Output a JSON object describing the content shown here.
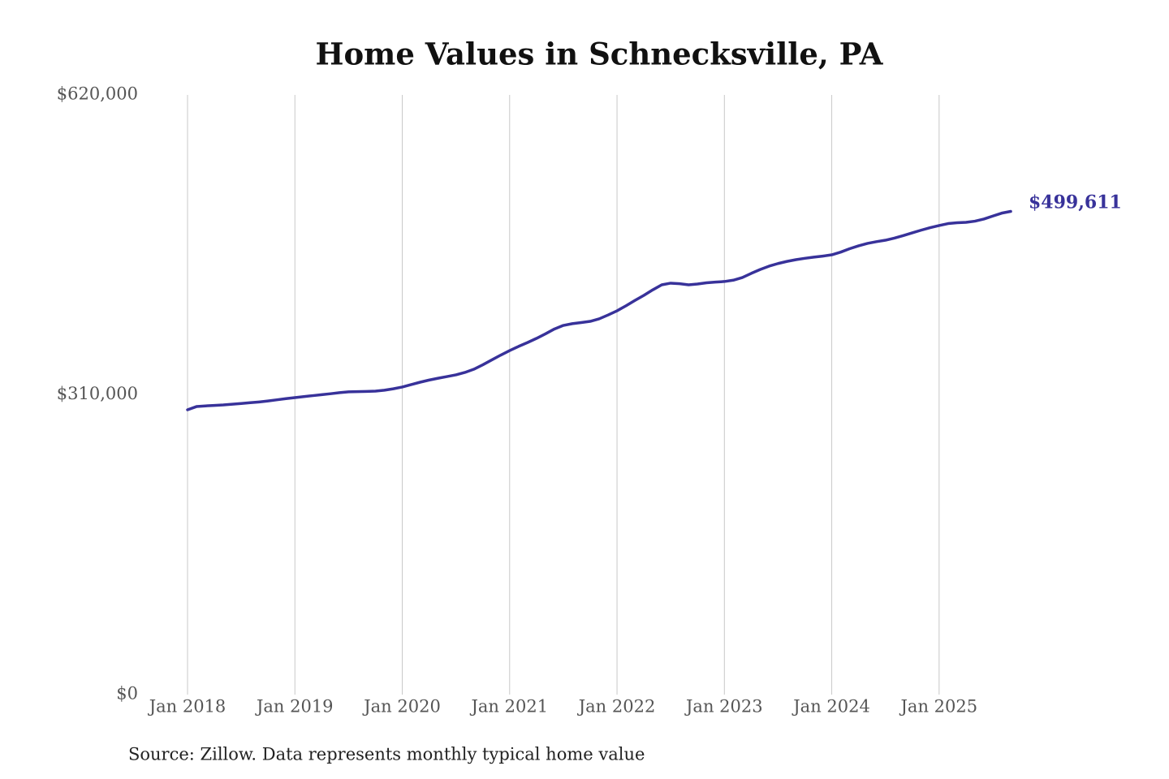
{
  "chart_data": {
    "type": "line",
    "title": "Home Values in Schnecksville, PA",
    "source": "Source: Zillow. Data represents monthly typical home value",
    "x": [
      "2018-01",
      "2018-02",
      "2018-03",
      "2018-04",
      "2018-05",
      "2018-06",
      "2018-07",
      "2018-08",
      "2018-09",
      "2018-10",
      "2018-11",
      "2018-12",
      "2019-01",
      "2019-02",
      "2019-03",
      "2019-04",
      "2019-05",
      "2019-06",
      "2019-07",
      "2019-08",
      "2019-09",
      "2019-10",
      "2019-11",
      "2019-12",
      "2020-01",
      "2020-02",
      "2020-03",
      "2020-04",
      "2020-05",
      "2020-06",
      "2020-07",
      "2020-08",
      "2020-09",
      "2020-10",
      "2020-11",
      "2020-12",
      "2021-01",
      "2021-02",
      "2021-03",
      "2021-04",
      "2021-05",
      "2021-06",
      "2021-07",
      "2021-08",
      "2021-09",
      "2021-10",
      "2021-11",
      "2021-12",
      "2022-01",
      "2022-02",
      "2022-03",
      "2022-04",
      "2022-05",
      "2022-06",
      "2022-07",
      "2022-08",
      "2022-09",
      "2022-10",
      "2022-11",
      "2022-12",
      "2023-01",
      "2023-02",
      "2023-03",
      "2023-04",
      "2023-05",
      "2023-06",
      "2023-07",
      "2023-08",
      "2023-09",
      "2023-10",
      "2023-11",
      "2023-12",
      "2024-01",
      "2024-02",
      "2024-03",
      "2024-04",
      "2024-05",
      "2024-06",
      "2024-07",
      "2024-08",
      "2024-09",
      "2024-10",
      "2024-11",
      "2024-12",
      "2025-01",
      "2025-02",
      "2025-03",
      "2025-04",
      "2025-05",
      "2025-06",
      "2025-07",
      "2025-08",
      "2025-09"
    ],
    "series": [
      {
        "color": "#38329a",
        "values": [
          294500,
          297800,
          298500,
          299000,
          299500,
          300200,
          301000,
          301800,
          302600,
          303600,
          304800,
          306000,
          307100,
          308100,
          309100,
          310100,
          311100,
          312200,
          313000,
          313300,
          313500,
          313800,
          314700,
          316200,
          318000,
          320500,
          323000,
          325200,
          327100,
          328800,
          330600,
          333100,
          336400,
          341000,
          346000,
          351000,
          355700,
          360000,
          364000,
          368300,
          373000,
          378000,
          381700,
          383500,
          384700,
          385900,
          388500,
          392500,
          396800,
          402000,
          407500,
          412800,
          418500,
          423700,
          425400,
          424800,
          423700,
          424500,
          425800,
          426500,
          427100,
          428500,
          431200,
          435500,
          439500,
          443000,
          445700,
          447900,
          449700,
          451100,
          452300,
          453400,
          454700,
          457500,
          461000,
          464000,
          466500,
          468300,
          469800,
          472000,
          474600,
          477400,
          480200,
          482800,
          485000,
          487000,
          487900,
          488300,
          489500,
          491700,
          494800,
          497800,
          499611
        ],
        "value_labels": [
          null,
          null,
          null,
          null,
          null,
          null,
          null,
          null,
          null,
          null,
          null,
          null,
          null,
          null,
          null,
          null,
          null,
          null,
          null,
          null,
          null,
          null,
          null,
          null,
          null,
          null,
          null,
          null,
          null,
          null,
          null,
          null,
          null,
          null,
          null,
          null,
          null,
          null,
          null,
          null,
          null,
          null,
          null,
          null,
          null,
          null,
          null,
          null,
          null,
          null,
          null,
          null,
          null,
          null,
          null,
          null,
          null,
          null,
          null,
          null,
          null,
          null,
          null,
          null,
          null,
          null,
          null,
          null,
          null,
          null,
          null,
          null,
          null,
          null,
          null,
          null,
          null,
          null,
          null,
          null,
          null,
          null,
          null,
          null,
          null,
          null,
          null,
          null,
          null,
          null,
          null,
          null,
          "$499,611"
        ]
      }
    ],
    "xlim": [
      "2018-01",
      "2025-09"
    ],
    "xticks": [
      {
        "value": "2018-01",
        "label": "Jan 2018"
      },
      {
        "value": "2019-01",
        "label": "Jan 2019"
      },
      {
        "value": "2020-01",
        "label": "Jan 2020"
      },
      {
        "value": "2021-01",
        "label": "Jan 2021"
      },
      {
        "value": "2022-01",
        "label": "Jan 2022"
      },
      {
        "value": "2023-01",
        "label": "Jan 2023"
      },
      {
        "value": "2024-01",
        "label": "Jan 2024"
      },
      {
        "value": "2025-01",
        "label": "Jan 2025"
      }
    ],
    "ylim": [
      0,
      620000
    ],
    "yticks": [
      {
        "value": 0,
        "label": "$0"
      },
      {
        "value": 310000,
        "label": "$310,000"
      },
      {
        "value": 620000,
        "label": "$620,000"
      }
    ],
    "grid": "x"
  }
}
